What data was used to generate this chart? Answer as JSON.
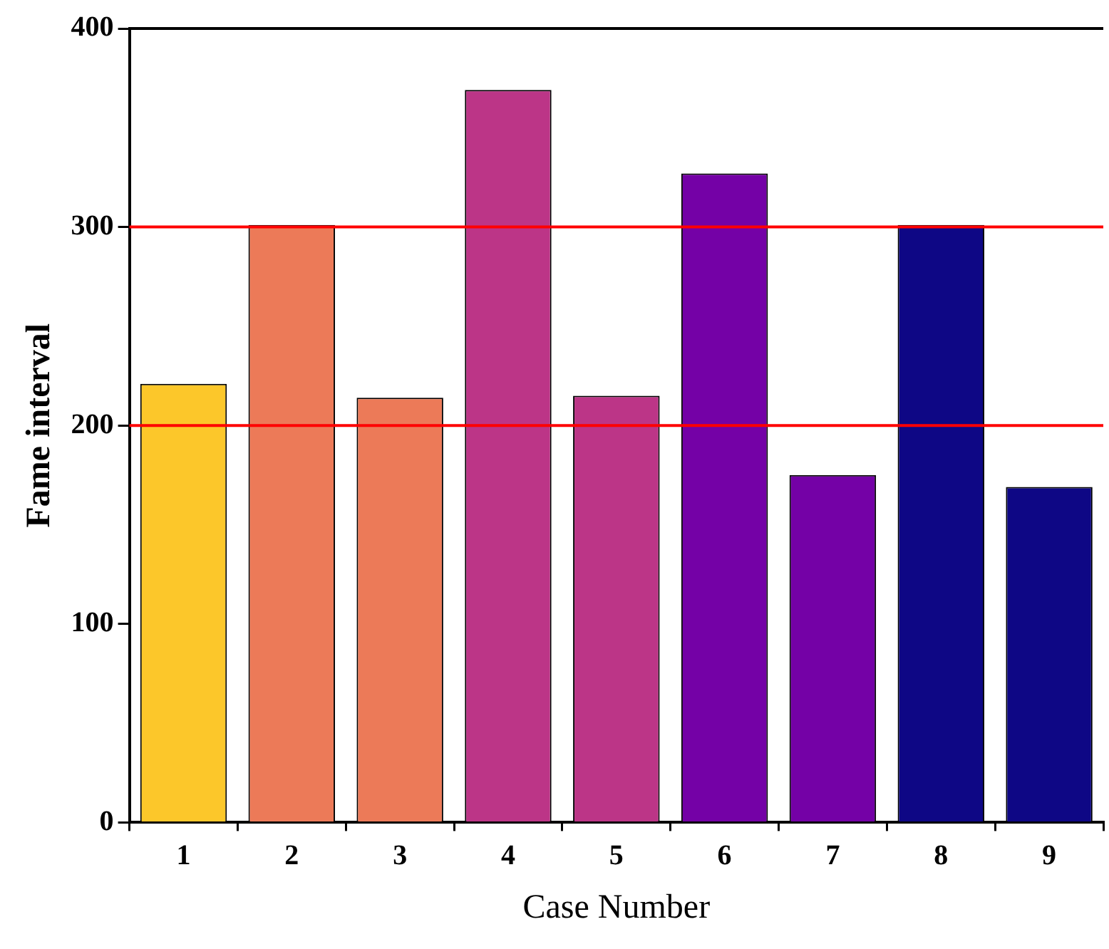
{
  "chart_data": {
    "type": "bar",
    "xlabel": "Case Number",
    "ylabel": "Fame interval",
    "categories": [
      "1",
      "2",
      "3",
      "4",
      "5",
      "6",
      "7",
      "8",
      "9"
    ],
    "values": [
      221,
      301,
      214,
      369,
      215,
      327,
      175,
      301,
      169
    ],
    "colors": [
      "#fcc72a",
      "#ec7a58",
      "#ec7a58",
      "#bc3587",
      "#bc3587",
      "#7401a6",
      "#7401a6",
      "#0e0785",
      "#0e0785"
    ],
    "ylim": [
      0,
      400
    ],
    "yticks": [
      0,
      100,
      200,
      300,
      400
    ],
    "grid": false,
    "legend": false,
    "ref_lines": [
      {
        "axis": "y",
        "value": 200,
        "color": "#ff0000"
      },
      {
        "axis": "y",
        "value": 300,
        "color": "#ff0000"
      }
    ]
  }
}
